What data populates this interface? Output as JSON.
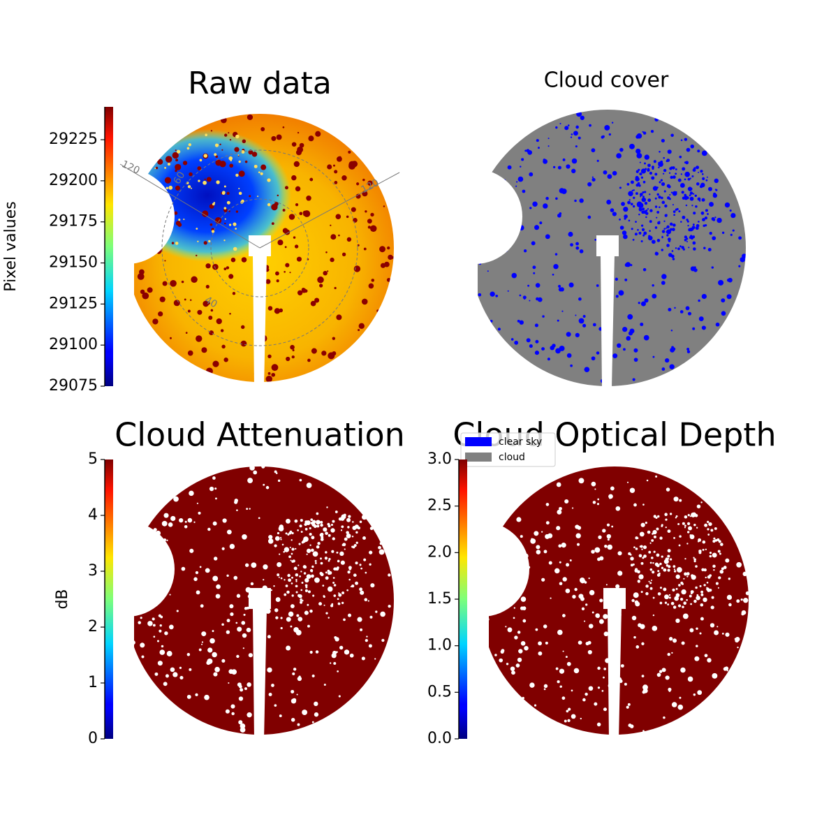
{
  "chart_data": [
    {
      "type": "image",
      "title": "Raw data",
      "colormap": "jet",
      "ylabel": "Pixel values",
      "ylim": [
        29075,
        29245
      ],
      "yticks": [
        29075,
        29100,
        29125,
        29150,
        29175,
        29200,
        29225
      ],
      "annotations": [
        "120",
        "60",
        "120",
        "40"
      ]
    },
    {
      "type": "mask",
      "title": "Cloud cover",
      "series": [
        {
          "name": "clear sky",
          "color": "#0000ff"
        },
        {
          "name": "cloud",
          "color": "#808080"
        }
      ]
    },
    {
      "type": "image",
      "title": "Cloud Attenuation",
      "colormap": "jet",
      "ylabel": "dB",
      "color": "#800000",
      "ylim": [
        0,
        5
      ],
      "yticks": [
        0,
        1,
        2,
        3,
        4,
        5
      ]
    },
    {
      "type": "image",
      "title": "Cloud Optical Depth",
      "colormap": "jet",
      "color": "#800000",
      "ylim": [
        0,
        3
      ],
      "yticks": [
        {
          "value": 0,
          "label": "0.0"
        },
        0.5,
        {
          "value": 1,
          "label": "1.0"
        },
        1.5,
        {
          "value": 2,
          "label": "2.0"
        },
        2.5,
        {
          "value": 3,
          "label": "3.0"
        }
      ]
    }
  ]
}
